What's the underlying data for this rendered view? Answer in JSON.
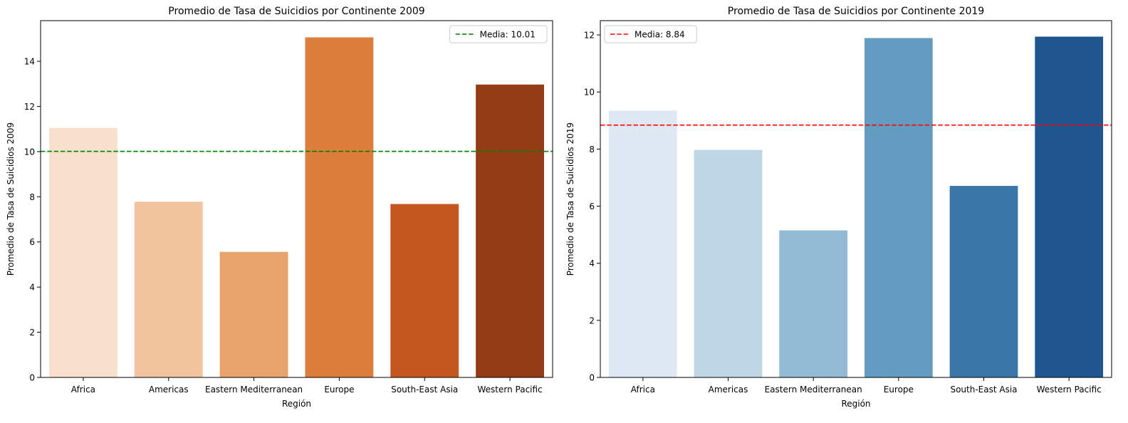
{
  "chart_data": [
    {
      "type": "bar",
      "title": "Promedio de Tasa de Suicidios por Continente 2009",
      "xlabel": "Región",
      "ylabel": "Promedio de Tasa de Suicidios 2009",
      "categories": [
        "Africa",
        "Americas",
        "Eastern Mediterranean",
        "Europe",
        "South-East Asia",
        "Western Pacific"
      ],
      "values": [
        11.05,
        7.78,
        5.56,
        15.06,
        7.68,
        12.97
      ],
      "colors": [
        "#f7e0cc",
        "#f0c59e",
        "#e8a26c",
        "#dc7d3b",
        "#c3571f",
        "#943c16"
      ],
      "ylim": [
        0,
        15.8
      ],
      "yticks": [
        0,
        2,
        4,
        6,
        8,
        10,
        12,
        14
      ],
      "mean_line": {
        "value": 10.01,
        "label": "Media: 10.01",
        "color": "#008000"
      },
      "legend_position": "top-right",
      "grid": false
    },
    {
      "type": "bar",
      "title": "Promedio de Tasa de Suicidios por Continente 2019",
      "xlabel": "Región",
      "ylabel": "Promedio de Tasa de Suicidios 2019",
      "categories": [
        "Africa",
        "Americas",
        "Eastern Mediterranean",
        "Europe",
        "South-East Asia",
        "Western Pacific"
      ],
      "values": [
        9.35,
        7.97,
        5.15,
        11.89,
        6.71,
        11.94
      ],
      "colors": [
        "#dde8f3",
        "#bfd6e7",
        "#93bad4",
        "#629cc1",
        "#3a77a8",
        "#1f5690"
      ],
      "ylim": [
        0,
        12.5
      ],
      "yticks": [
        0,
        2,
        4,
        6,
        8,
        10,
        12
      ],
      "mean_line": {
        "value": 8.84,
        "label": "Media: 8.84",
        "color": "#ff0000"
      },
      "legend_position": "top-left",
      "grid": false
    }
  ]
}
